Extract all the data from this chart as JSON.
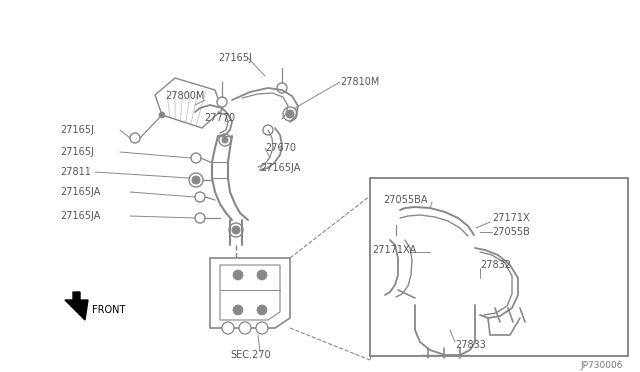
{
  "bg_color": "#ffffff",
  "lc": "#888888",
  "tc": "#555555",
  "part_number": "JP730006",
  "figsize": [
    6.4,
    3.72
  ],
  "dpi": 100,
  "xlim": [
    0,
    640
  ],
  "ylim": [
    0,
    372
  ]
}
